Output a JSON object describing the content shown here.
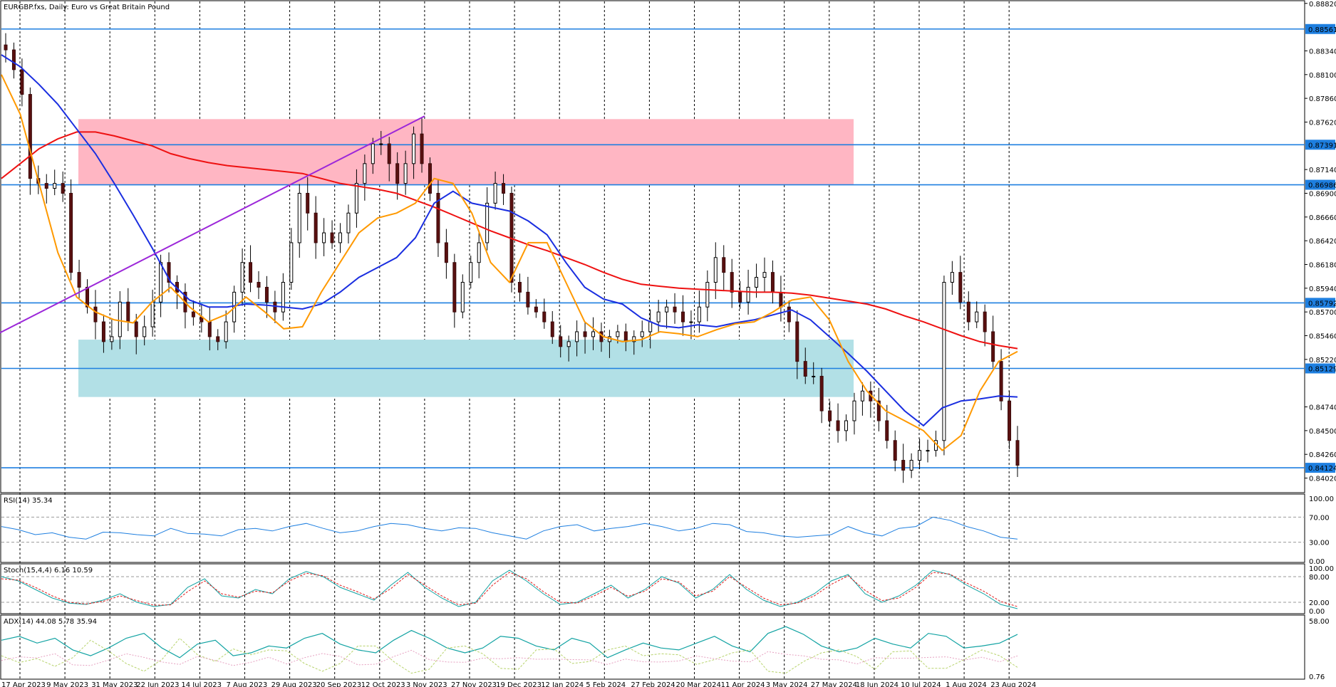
{
  "chart_data": {
    "type": "candlestick",
    "title": "EURGBP.fxs, Daily:  Euro vs Great Britain Pound",
    "main": {
      "y_ticks": [
        "0.88820",
        "0.88340",
        "0.88100",
        "0.87860",
        "0.87620",
        "0.87140",
        "0.86900",
        "0.86660",
        "0.86420",
        "0.86180",
        "0.85940",
        "0.85700",
        "0.85460",
        "0.85220",
        "0.84740",
        "0.84500",
        "0.84260",
        "0.84020"
      ],
      "ylim": [
        0.8388,
        0.8884
      ],
      "levels": [
        {
          "value": 0.88561,
          "label": "0.88561"
        },
        {
          "value": 0.87391,
          "label": "0.87391"
        },
        {
          "value": 0.86986,
          "label": "0.86986"
        },
        {
          "value": 0.85792,
          "label": "0.85792"
        },
        {
          "value": 0.85129,
          "label": "0.85129"
        },
        {
          "value": 0.84124,
          "label": "0.84124"
        }
      ],
      "resistance_zone": {
        "from": "24 May 2023",
        "to": "31 May 2024",
        "low": 0.86986,
        "high": 0.8765
      },
      "support_zone": {
        "from": "24 May 2023",
        "to": "31 May 2024",
        "low": 0.8484,
        "high": 0.8542
      },
      "trendline": {
        "from": [
          "3 Nov 2023",
          0.8768
        ],
        "to": [
          "1 Jul 2024",
          0.8546
        ]
      },
      "closes": [
        0.8835,
        0.8815,
        0.879,
        0.8705,
        0.87,
        0.8695,
        0.87,
        0.869,
        0.861,
        0.8595,
        0.8575,
        0.856,
        0.854,
        0.8545,
        0.858,
        0.856,
        0.8545,
        0.8555,
        0.858,
        0.862,
        0.86,
        0.859,
        0.857,
        0.8565,
        0.856,
        0.8545,
        0.854,
        0.856,
        0.859,
        0.862,
        0.86,
        0.8595,
        0.858,
        0.857,
        0.86,
        0.864,
        0.869,
        0.867,
        0.864,
        0.865,
        0.864,
        0.865,
        0.867,
        0.87,
        0.872,
        0.874,
        0.874,
        0.872,
        0.87,
        0.872,
        0.875,
        0.872,
        0.869,
        0.864,
        0.862,
        0.857,
        0.86,
        0.862,
        0.864,
        0.868,
        0.87,
        0.869,
        0.86,
        0.859,
        0.8575,
        0.857,
        0.856,
        0.8545,
        0.8535,
        0.854,
        0.855,
        0.8545,
        0.855,
        0.854,
        0.8545,
        0.855,
        0.854,
        0.8545,
        0.855,
        0.856,
        0.857,
        0.8575,
        0.857,
        0.856,
        0.856,
        0.8575,
        0.86,
        0.8625,
        0.861,
        0.859,
        0.858,
        0.8595,
        0.8605,
        0.861,
        0.859,
        0.8575,
        0.856,
        0.852,
        0.8505,
        0.8505,
        0.847,
        0.846,
        0.845,
        0.846,
        0.848,
        0.849,
        0.848,
        0.846,
        0.844,
        0.842,
        0.841,
        0.842,
        0.843,
        0.843,
        0.844,
        0.86,
        0.861,
        0.858,
        0.856,
        0.857,
        0.855,
        0.852,
        0.848,
        0.844,
        0.8415
      ],
      "series": [
        {
          "name": "MA 200",
          "color": "#ee1111",
          "values": [
            0.8705,
            0.872,
            0.8735,
            0.8745,
            0.8752,
            0.8752,
            0.8748,
            0.8743,
            0.8738,
            0.873,
            0.8725,
            0.8721,
            0.8718,
            0.8716,
            0.8714,
            0.8712,
            0.871,
            0.8705,
            0.87,
            0.8697,
            0.8694,
            0.869,
            0.8683,
            0.8676,
            0.8668,
            0.866,
            0.8652,
            0.8645,
            0.8638,
            0.8632,
            0.8625,
            0.8618,
            0.861,
            0.8603,
            0.8598,
            0.8596,
            0.8594,
            0.8593,
            0.8592,
            0.8591,
            0.859,
            0.859,
            0.8589,
            0.8587,
            0.8584,
            0.8581,
            0.8578,
            0.8573,
            0.8566,
            0.856,
            0.8553,
            0.8546,
            0.854,
            0.8536,
            0.8533
          ]
        },
        {
          "name": "MA 50",
          "color": "#1a2ee0",
          "values": [
            0.883,
            0.8818,
            0.88,
            0.878,
            0.8755,
            0.873,
            0.87,
            0.8668,
            0.8635,
            0.86,
            0.8582,
            0.8575,
            0.8575,
            0.8578,
            0.8577,
            0.8575,
            0.8573,
            0.8578,
            0.859,
            0.8605,
            0.8615,
            0.8625,
            0.8645,
            0.868,
            0.8692,
            0.868,
            0.8676,
            0.8672,
            0.8662,
            0.8648,
            0.862,
            0.8595,
            0.8583,
            0.8578,
            0.8564,
            0.8556,
            0.8554,
            0.8557,
            0.8555,
            0.8559,
            0.8562,
            0.8567,
            0.8572,
            0.8562,
            0.8545,
            0.8528,
            0.851,
            0.849,
            0.847,
            0.8455,
            0.8473,
            0.848,
            0.8482,
            0.8485,
            0.8484
          ]
        },
        {
          "name": "MA 20",
          "color": "#ff9900",
          "values": [
            0.881,
            0.877,
            0.87,
            0.863,
            0.8585,
            0.857,
            0.8562,
            0.8559,
            0.858,
            0.8595,
            0.8575,
            0.856,
            0.8568,
            0.8585,
            0.857,
            0.8553,
            0.8555,
            0.859,
            0.862,
            0.865,
            0.8665,
            0.867,
            0.868,
            0.8705,
            0.87,
            0.867,
            0.862,
            0.86,
            0.864,
            0.864,
            0.86,
            0.856,
            0.8545,
            0.854,
            0.8542,
            0.855,
            0.8548,
            0.8545,
            0.8552,
            0.8558,
            0.856,
            0.857,
            0.8582,
            0.8585,
            0.8562,
            0.852,
            0.849,
            0.847,
            0.846,
            0.845,
            0.843,
            0.8445,
            0.849,
            0.852,
            0.853
          ]
        }
      ]
    },
    "rsi": {
      "label": "RSI(14) 35.34",
      "y_ticks": [
        "100.00",
        "70.00",
        "30.00",
        "0.00"
      ],
      "ylim": [
        0,
        100
      ],
      "levels": [
        70,
        30
      ],
      "values": [
        55,
        50,
        42,
        45,
        38,
        35,
        46,
        45,
        42,
        40,
        52,
        44,
        43,
        40,
        50,
        52,
        48,
        55,
        60,
        52,
        45,
        48,
        55,
        60,
        58,
        52,
        48,
        53,
        52,
        45,
        40,
        35,
        48,
        55,
        58,
        48,
        52,
        55,
        60,
        55,
        48,
        52,
        60,
        58,
        47,
        45,
        40,
        38,
        40,
        42,
        55,
        45,
        40,
        52,
        55,
        70,
        65,
        55,
        48,
        38,
        35
      ]
    },
    "stoch": {
      "label": "Stoch(15,4,4) 6.16 10.59",
      "y_ticks": [
        "100.00",
        "80.00",
        "20.00",
        "0.00"
      ],
      "ylim": [
        0,
        100
      ],
      "levels": [
        80,
        20
      ],
      "values": [
        80,
        70,
        50,
        30,
        18,
        15,
        25,
        40,
        20,
        10,
        15,
        55,
        75,
        35,
        30,
        50,
        40,
        75,
        92,
        80,
        55,
        40,
        25,
        60,
        90,
        55,
        30,
        10,
        20,
        70,
        95,
        70,
        40,
        15,
        20,
        40,
        60,
        30,
        50,
        80,
        65,
        30,
        50,
        85,
        50,
        25,
        10,
        20,
        40,
        70,
        85,
        40,
        20,
        35,
        60,
        95,
        85,
        60,
        40,
        15,
        5
      ],
      "signal": [
        75,
        72,
        55,
        35,
        20,
        16,
        22,
        35,
        24,
        13,
        14,
        45,
        70,
        40,
        32,
        46,
        42,
        70,
        88,
        82,
        60,
        45,
        28,
        52,
        85,
        60,
        35,
        14,
        18,
        60,
        90,
        75,
        45,
        20,
        18,
        35,
        55,
        34,
        46,
        75,
        68,
        35,
        46,
        80,
        55,
        30,
        14,
        18,
        35,
        62,
        82,
        48,
        24,
        30,
        55,
        90,
        86,
        65,
        46,
        22,
        10
      ]
    },
    "adx": {
      "label": "ADX(14) 44.08 5.78 35.94",
      "y_ticks": [
        "58.00",
        "0.76"
      ],
      "ylim": [
        0.76,
        58
      ],
      "adx": [
        38,
        42,
        35,
        40,
        28,
        22,
        30,
        40,
        45,
        30,
        20,
        34,
        38,
        22,
        25,
        32,
        30,
        40,
        45,
        34,
        28,
        25,
        38,
        48,
        40,
        30,
        25,
        30,
        42,
        40,
        32,
        28,
        40,
        35,
        20,
        28,
        35,
        30,
        28,
        35,
        42,
        32,
        26,
        45,
        52,
        44,
        32,
        26,
        30,
        40,
        34,
        30,
        45,
        42,
        30,
        32,
        35,
        44
      ]
    },
    "x_ticks": [
      "17 Apr 2023",
      "9 May 2023",
      "31 May 2023",
      "22 Jun 2023",
      "14 Jul 2023",
      "7 Aug 2023",
      "29 Aug 2023",
      "20 Sep 2023",
      "12 Oct 2023",
      "3 Nov 2023",
      "27 Nov 2023",
      "19 Dec 2023",
      "12 Jan 2024",
      "5 Feb 2024",
      "27 Feb 2024",
      "20 Mar 2024",
      "11 Apr 2024",
      "3 May 2024",
      "27 May 2024",
      "18 Jun 2024",
      "10 Jul 2024",
      "1 Aug 2024",
      "23 Aug 2024"
    ]
  }
}
